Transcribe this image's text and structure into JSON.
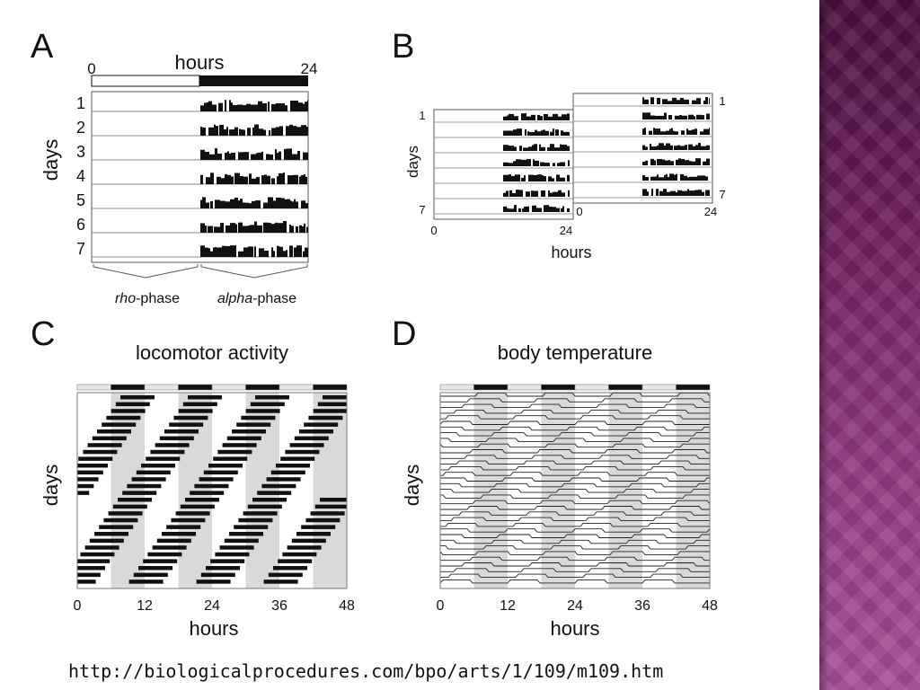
{
  "panels": {
    "a": {
      "letter": "A",
      "hours_label": "hours",
      "axis_ticks": [
        "0",
        "24"
      ],
      "days_label": "days",
      "day_labels": [
        "1",
        "2",
        "3",
        "4",
        "5",
        "6",
        "7"
      ],
      "phase_labels": {
        "rho_italic": "rho",
        "rho_suffix": "-phase",
        "alpha_italic": "alpha",
        "alpha_suffix": "-phase"
      }
    },
    "b": {
      "letter": "B",
      "days_label": "days",
      "hours_label": "hours",
      "row_labels_left": [
        "1",
        "7"
      ],
      "row_labels_right": [
        "1",
        "7"
      ],
      "axis_ticks_left": [
        "0",
        "24"
      ],
      "axis_ticks_right": [
        "0",
        "24"
      ]
    },
    "c": {
      "letter": "C",
      "title": "locomotor activity",
      "days_label": "days",
      "hours_label": "hours",
      "x_ticks": [
        "0",
        "12",
        "24",
        "36",
        "48"
      ]
    },
    "d": {
      "letter": "D",
      "title": "body temperature",
      "days_label": "days",
      "hours_label": "hours",
      "x_ticks": [
        "0",
        "12",
        "24",
        "36",
        "48"
      ]
    }
  },
  "source_url": "http://biologicalprocedures.com/bpo/arts/1/109/m109.htm",
  "colors": {
    "side_panel_top": "#4a0d3e",
    "side_panel_bottom": "#a64e98",
    "ink": "#111111",
    "shading": "#d9d9d9",
    "grid": "#999999"
  }
}
